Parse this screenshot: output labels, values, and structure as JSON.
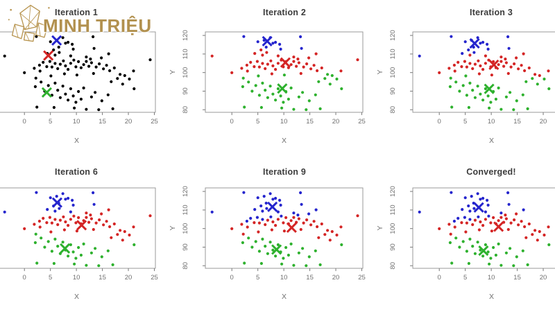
{
  "logo": {
    "brand": "MINH TRIỆU",
    "icon": "crystal-gem-icon"
  },
  "chart_data": {
    "type": "scatter",
    "figure": "K-means clustering iterations (2x3 panel grid, shared point cloud)",
    "xlabel": "X",
    "ylabel": "Y",
    "x_ticks": [
      0,
      5,
      10,
      15,
      20,
      25
    ],
    "y_ticks": [
      80,
      90,
      100,
      110,
      120
    ],
    "xlim": [
      -5.1,
      25.2
    ],
    "ylim": [
      78.6,
      121.9
    ],
    "grid": false,
    "colors": {
      "black": "#000000",
      "red": "#d42525",
      "green": "#2eb12e",
      "blue": "#2525cd",
      "frame": "#9a9a9a",
      "tick": "#7a7a7a",
      "axis_text": "#6f6f6f",
      "title_text": "#3c3c3c",
      "brand_gold": "#b2914f"
    },
    "points": [
      [
        2.3,
        119.4
      ],
      [
        13.2,
        119.3
      ],
      [
        5.0,
        116.6
      ],
      [
        6.2,
        117.4
      ],
      [
        7.4,
        118.8
      ],
      [
        7.9,
        115.8
      ],
      [
        8.4,
        116.3
      ],
      [
        9.2,
        115.2
      ],
      [
        6.6,
        113.7
      ],
      [
        5.6,
        112.2
      ],
      [
        9.4,
        112.6
      ],
      [
        4.4,
        110.3
      ],
      [
        5.9,
        109.4
      ],
      [
        6.7,
        110.8
      ],
      [
        8.9,
        109.0
      ],
      [
        11.9,
        108.4
      ],
      [
        13.4,
        113.0
      ],
      [
        16.2,
        110.1
      ],
      [
        12.7,
        107.3
      ],
      [
        -3.8,
        108.9
      ],
      [
        14.8,
        107.9
      ],
      [
        0.0,
        99.9
      ],
      [
        1.9,
        102.3
      ],
      [
        2.9,
        104.0
      ],
      [
        3.6,
        105.5
      ],
      [
        4.3,
        103.2
      ],
      [
        4.9,
        106.0
      ],
      [
        5.3,
        103.0
      ],
      [
        5.9,
        104.9
      ],
      [
        6.4,
        102.1
      ],
      [
        6.9,
        104.5
      ],
      [
        7.5,
        106.3
      ],
      [
        7.9,
        103.6
      ],
      [
        8.4,
        101.7
      ],
      [
        8.9,
        105.0
      ],
      [
        9.5,
        106.7
      ],
      [
        9.9,
        103.1
      ],
      [
        10.4,
        105.9
      ],
      [
        10.9,
        102.6
      ],
      [
        11.4,
        104.3
      ],
      [
        11.9,
        106.0
      ],
      [
        12.4,
        103.4
      ],
      [
        12.9,
        105.3
      ],
      [
        13.8,
        103.0
      ],
      [
        14.4,
        104.7
      ],
      [
        15.2,
        102.0
      ],
      [
        15.8,
        103.9
      ],
      [
        16.4,
        101.0
      ],
      [
        17.3,
        102.5
      ],
      [
        18.4,
        99.0
      ],
      [
        19.3,
        98.4
      ],
      [
        21.0,
        100.9
      ],
      [
        24.2,
        106.9
      ],
      [
        13.3,
        99.5
      ],
      [
        10.1,
        98.7
      ],
      [
        7.7,
        99.3
      ],
      [
        5.1,
        98.2
      ],
      [
        2.2,
        97.0
      ],
      [
        3.0,
        100.8
      ],
      [
        17.9,
        96.8
      ],
      [
        20.2,
        96.5
      ],
      [
        16.7,
        95.1
      ],
      [
        2.1,
        92.4
      ],
      [
        3.2,
        94.9
      ],
      [
        3.9,
        90.0
      ],
      [
        4.6,
        93.0
      ],
      [
        5.3,
        87.8
      ],
      [
        5.9,
        94.3
      ],
      [
        6.4,
        90.5
      ],
      [
        6.9,
        86.5
      ],
      [
        7.4,
        92.7
      ],
      [
        7.9,
        88.4
      ],
      [
        8.4,
        85.2
      ],
      [
        8.9,
        91.3
      ],
      [
        9.4,
        87.4
      ],
      [
        9.9,
        84.0
      ],
      [
        10.4,
        89.8
      ],
      [
        10.9,
        85.7
      ],
      [
        11.4,
        91.7
      ],
      [
        11.9,
        80.2
      ],
      [
        12.9,
        86.9
      ],
      [
        13.6,
        89.3
      ],
      [
        14.3,
        80.0
      ],
      [
        14.9,
        84.8
      ],
      [
        16.1,
        88.0
      ],
      [
        17.0,
        80.5
      ],
      [
        18.9,
        93.8
      ],
      [
        21.1,
        91.3
      ],
      [
        2.4,
        81.4
      ],
      [
        5.7,
        81.2
      ],
      [
        9.6,
        80.9
      ]
    ],
    "panels": [
      {
        "title": "Iteration 1",
        "row": 0,
        "col": 0,
        "show_yaxis": false,
        "centroids": {
          "blue": [
            6.2,
            117.3
          ],
          "red": [
            4.6,
            109.2
          ],
          "green": [
            4.3,
            89.3
          ]
        },
        "assign_centroids": null
      },
      {
        "title": "Iteration 2",
        "row": 0,
        "col": 1,
        "show_yaxis": true,
        "centroids": {
          "blue": [
            6.8,
            116.9
          ],
          "red": [
            10.3,
            105.4
          ],
          "green": [
            9.7,
            91.4
          ]
        },
        "assign_centroids": {
          "blue": [
            6.2,
            117.3
          ],
          "red": [
            4.6,
            109.2
          ],
          "green": [
            4.3,
            89.3
          ]
        }
      },
      {
        "title": "Iteration 3",
        "row": 0,
        "col": 2,
        "show_yaxis": true,
        "centroids": {
          "blue": [
            6.8,
            115.7
          ],
          "red": [
            10.5,
            104.2
          ],
          "green": [
            9.6,
            91.2
          ]
        },
        "assign_centroids": {
          "blue": [
            6.8,
            116.9
          ],
          "red": [
            10.3,
            105.4
          ],
          "green": [
            9.7,
            91.4
          ]
        }
      },
      {
        "title": "Iteration 6",
        "row": 1,
        "col": 0,
        "show_yaxis": false,
        "centroids": {
          "blue": [
            6.3,
            114.0
          ],
          "red": [
            11.0,
            101.8
          ],
          "green": [
            7.8,
            89.3
          ]
        },
        "assign_centroids": {
          "blue": [
            6.3,
            114.0
          ],
          "red": [
            11.0,
            101.8
          ],
          "green": [
            7.8,
            89.3
          ]
        }
      },
      {
        "title": "Iteration 9",
        "row": 1,
        "col": 1,
        "show_yaxis": true,
        "centroids": {
          "blue": [
            7.8,
            111.7
          ],
          "red": [
            11.5,
            100.5
          ],
          "green": [
            8.6,
            88.7
          ]
        },
        "assign_centroids": {
          "blue": [
            7.8,
            111.7
          ],
          "red": [
            11.5,
            100.5
          ],
          "green": [
            8.6,
            88.7
          ]
        }
      },
      {
        "title": "Converged!",
        "row": 1,
        "col": 2,
        "show_yaxis": true,
        "centroids": {
          "blue": [
            7.6,
            111.4
          ],
          "red": [
            11.4,
            101.0
          ],
          "green": [
            8.5,
            88.1
          ]
        },
        "assign_centroids": {
          "blue": [
            7.6,
            111.4
          ],
          "red": [
            11.4,
            101.0
          ],
          "green": [
            8.5,
            88.1
          ]
        }
      }
    ]
  }
}
